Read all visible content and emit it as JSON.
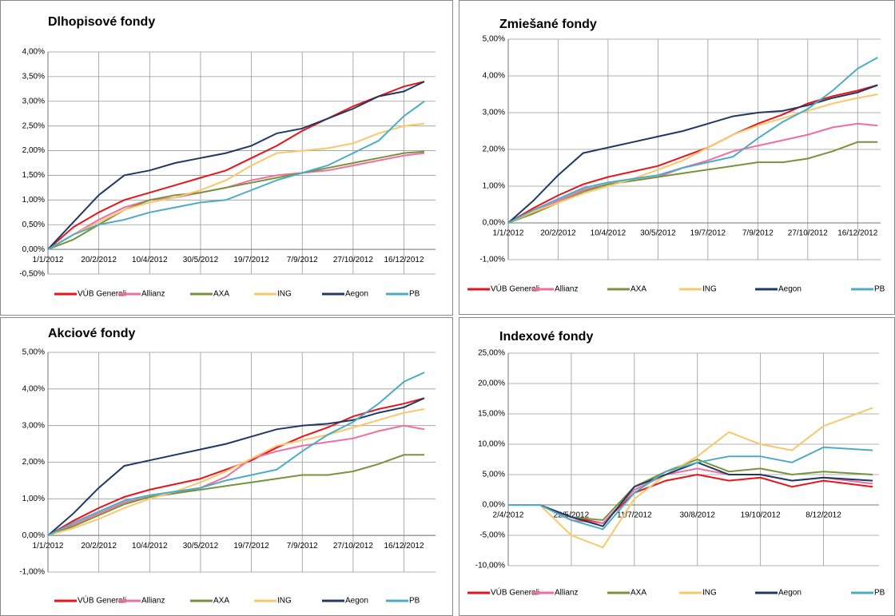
{
  "chart_data": [
    {
      "type": "line",
      "title": "Dlhopisové fondy",
      "x": [
        "2012-01-01",
        "2012-01-26",
        "2012-02-20",
        "2012-03-16",
        "2012-04-10",
        "2012-05-05",
        "2012-05-30",
        "2012-06-24",
        "2012-07-19",
        "2012-08-13",
        "2012-09-07",
        "2012-10-02",
        "2012-10-27",
        "2012-11-21",
        "2012-12-16",
        "2013-01-05"
      ],
      "xlim": [
        "2012-01-01",
        "2013-01-16"
      ],
      "xticks": [
        {
          "value": "2012-01-01",
          "label": "1/1/2012"
        },
        {
          "value": "2012-02-20",
          "label": "20/2/2012"
        },
        {
          "value": "2012-04-10",
          "label": "10/4/2012"
        },
        {
          "value": "2012-05-30",
          "label": "30/5/2012"
        },
        {
          "value": "2012-07-19",
          "label": "19/7/2012"
        },
        {
          "value": "2012-09-07",
          "label": "7/9/2012"
        },
        {
          "value": "2012-10-27",
          "label": "27/10/2012"
        },
        {
          "value": "2012-12-16",
          "label": "16/12/2012"
        }
      ],
      "ylim": [
        -0.5,
        4
      ],
      "yticks": [
        {
          "value": -0.5,
          "label": "-0,50%"
        },
        {
          "value": 0,
          "label": "0,00%"
        },
        {
          "value": 0.5,
          "label": "0,50%"
        },
        {
          "value": 1,
          "label": "1,00%"
        },
        {
          "value": 1.5,
          "label": "1,50%"
        },
        {
          "value": 2,
          "label": "2,00%"
        },
        {
          "value": 2.5,
          "label": "2,50%"
        },
        {
          "value": 3,
          "label": "3,00%"
        },
        {
          "value": 3.5,
          "label": "3,50%"
        },
        {
          "value": 4,
          "label": "4,00%"
        }
      ],
      "grid": true,
      "legend": "bottom",
      "series": [
        {
          "name": "VÚB Generali",
          "color": "#e8141b",
          "values": [
            0,
            0.45,
            0.75,
            1.0,
            1.15,
            1.3,
            1.45,
            1.6,
            1.85,
            2.1,
            2.4,
            2.65,
            2.9,
            3.1,
            3.3,
            3.4
          ]
        },
        {
          "name": "Allianz",
          "color": "#f06ea0",
          "values": [
            0,
            0.3,
            0.6,
            0.85,
            1.0,
            1.05,
            1.15,
            1.25,
            1.4,
            1.5,
            1.55,
            1.6,
            1.7,
            1.8,
            1.9,
            1.95
          ]
        },
        {
          "name": "AXA",
          "color": "#77943c",
          "values": [
            0,
            0.2,
            0.5,
            0.8,
            1.0,
            1.1,
            1.15,
            1.25,
            1.35,
            1.45,
            1.55,
            1.65,
            1.75,
            1.85,
            1.95,
            1.98
          ]
        },
        {
          "name": "ING",
          "color": "#fac76a",
          "values": [
            0,
            0.3,
            0.55,
            0.8,
            0.95,
            1.05,
            1.2,
            1.4,
            1.7,
            1.95,
            2.0,
            2.05,
            2.15,
            2.35,
            2.5,
            2.55
          ]
        },
        {
          "name": "Aegon",
          "color": "#1f3864",
          "values": [
            0,
            0.55,
            1.1,
            1.5,
            1.6,
            1.75,
            1.85,
            1.95,
            2.1,
            2.35,
            2.45,
            2.65,
            2.85,
            3.1,
            3.2,
            3.4
          ]
        },
        {
          "name": "PB",
          "color": "#4bacc6",
          "values": [
            0,
            0.3,
            0.5,
            0.6,
            0.75,
            0.85,
            0.95,
            1.0,
            1.2,
            1.4,
            1.55,
            1.7,
            1.95,
            2.2,
            2.7,
            3.0
          ]
        }
      ]
    },
    {
      "type": "line",
      "title": "Zmiešané fondy",
      "x": [
        "2012-01-01",
        "2012-01-26",
        "2012-02-20",
        "2012-03-16",
        "2012-04-10",
        "2012-05-05",
        "2012-05-30",
        "2012-06-24",
        "2012-07-19",
        "2012-08-13",
        "2012-09-07",
        "2012-10-02",
        "2012-10-27",
        "2012-11-21",
        "2012-12-16",
        "2013-01-05"
      ],
      "xlim": [
        "2012-01-01",
        "2013-01-08"
      ],
      "xticks": [
        {
          "value": "2012-01-01",
          "label": "1/1/2012"
        },
        {
          "value": "2012-02-20",
          "label": "20/2/2012"
        },
        {
          "value": "2012-04-10",
          "label": "10/4/2012"
        },
        {
          "value": "2012-05-30",
          "label": "30/5/2012"
        },
        {
          "value": "2012-07-19",
          "label": "19/7/2012"
        },
        {
          "value": "2012-09-07",
          "label": "7/9/2012"
        },
        {
          "value": "2012-10-27",
          "label": "27/10/2012"
        },
        {
          "value": "2012-12-16",
          "label": "16/12/2012"
        }
      ],
      "ylim": [
        -1,
        5
      ],
      "yticks": [
        {
          "value": -1,
          "label": "-1,00%"
        },
        {
          "value": 0,
          "label": "0,00%"
        },
        {
          "value": 1,
          "label": "1,00%"
        },
        {
          "value": 2,
          "label": "2,00%"
        },
        {
          "value": 3,
          "label": "3,00%"
        },
        {
          "value": 4,
          "label": "4,00%"
        },
        {
          "value": 5,
          "label": "5,00%"
        }
      ],
      "grid": true,
      "legend": "bottom",
      "series": [
        {
          "name": "VÚB Generali",
          "color": "#e8141b",
          "values": [
            0,
            0.4,
            0.75,
            1.05,
            1.25,
            1.4,
            1.55,
            1.8,
            2.05,
            2.4,
            2.7,
            2.95,
            3.25,
            3.45,
            3.6,
            3.75
          ]
        },
        {
          "name": "Allianz",
          "color": "#f06ea0",
          "values": [
            0,
            0.3,
            0.6,
            0.9,
            1.05,
            1.15,
            1.25,
            1.5,
            1.7,
            1.95,
            2.1,
            2.25,
            2.4,
            2.6,
            2.7,
            2.65
          ]
        },
        {
          "name": "AXA",
          "color": "#77943c",
          "values": [
            0,
            0.25,
            0.55,
            0.85,
            1.05,
            1.15,
            1.25,
            1.35,
            1.45,
            1.55,
            1.65,
            1.65,
            1.75,
            1.95,
            2.2,
            2.2
          ]
        },
        {
          "name": "ING",
          "color": "#fac76a",
          "values": [
            0,
            0.3,
            0.55,
            0.8,
            1.0,
            1.2,
            1.45,
            1.7,
            2.05,
            2.4,
            2.65,
            2.85,
            3.05,
            3.25,
            3.4,
            3.5
          ]
        },
        {
          "name": "Aegon",
          "color": "#1f3864",
          "values": [
            0,
            0.6,
            1.3,
            1.9,
            2.05,
            2.2,
            2.35,
            2.5,
            2.7,
            2.9,
            3.0,
            3.05,
            3.2,
            3.4,
            3.55,
            3.75
          ]
        },
        {
          "name": "PB",
          "color": "#4bacc6",
          "values": [
            0,
            0.35,
            0.65,
            0.95,
            1.1,
            1.2,
            1.3,
            1.5,
            1.65,
            1.8,
            2.3,
            2.75,
            3.1,
            3.6,
            4.2,
            4.5
          ]
        }
      ]
    },
    {
      "type": "line",
      "title": "Akciové fondy",
      "x": [
        "2012-01-01",
        "2012-01-26",
        "2012-02-20",
        "2012-03-16",
        "2012-04-10",
        "2012-05-05",
        "2012-05-30",
        "2012-06-24",
        "2012-07-19",
        "2012-08-13",
        "2012-09-07",
        "2012-10-02",
        "2012-10-27",
        "2012-11-21",
        "2012-12-16",
        "2013-01-05"
      ],
      "xlim": [
        "2012-01-01",
        "2013-01-16"
      ],
      "xticks": [
        {
          "value": "2012-01-01",
          "label": "1/1/2012"
        },
        {
          "value": "2012-02-20",
          "label": "20/2/2012"
        },
        {
          "value": "2012-04-10",
          "label": "10/4/2012"
        },
        {
          "value": "2012-05-30",
          "label": "30/5/2012"
        },
        {
          "value": "2012-07-19",
          "label": "19/7/2012"
        },
        {
          "value": "2012-09-07",
          "label": "7/9/2012"
        },
        {
          "value": "2012-10-27",
          "label": "27/10/2012"
        },
        {
          "value": "2012-12-16",
          "label": "16/12/2012"
        }
      ],
      "ylim": [
        -1,
        5
      ],
      "yticks": [
        {
          "value": -1,
          "label": "-1,00%"
        },
        {
          "value": 0,
          "label": "0,00%"
        },
        {
          "value": 1,
          "label": "1,00%"
        },
        {
          "value": 2,
          "label": "2,00%"
        },
        {
          "value": 3,
          "label": "3,00%"
        },
        {
          "value": 4,
          "label": "4,00%"
        },
        {
          "value": 5,
          "label": "5,00%"
        }
      ],
      "grid": true,
      "legend": "bottom",
      "series": [
        {
          "name": "VÚB Generali",
          "color": "#e8141b",
          "values": [
            0,
            0.4,
            0.75,
            1.05,
            1.25,
            1.4,
            1.55,
            1.8,
            2.05,
            2.4,
            2.7,
            2.95,
            3.25,
            3.45,
            3.6,
            3.75
          ]
        },
        {
          "name": "Allianz",
          "color": "#f06ea0",
          "values": [
            0,
            0.3,
            0.6,
            0.9,
            1.05,
            1.15,
            1.3,
            1.6,
            2.1,
            2.3,
            2.45,
            2.55,
            2.65,
            2.85,
            3.0,
            2.9
          ]
        },
        {
          "name": "AXA",
          "color": "#77943c",
          "values": [
            0,
            0.25,
            0.55,
            0.85,
            1.05,
            1.15,
            1.25,
            1.35,
            1.45,
            1.55,
            1.65,
            1.65,
            1.75,
            1.95,
            2.2,
            2.2
          ]
        },
        {
          "name": "ING",
          "color": "#fac76a",
          "values": [
            0,
            0.2,
            0.45,
            0.75,
            1.0,
            1.2,
            1.45,
            1.75,
            2.1,
            2.45,
            2.6,
            2.75,
            2.95,
            3.15,
            3.35,
            3.45
          ]
        },
        {
          "name": "Aegon",
          "color": "#1f3864",
          "values": [
            0,
            0.6,
            1.3,
            1.9,
            2.05,
            2.2,
            2.35,
            2.5,
            2.7,
            2.9,
            3.0,
            3.05,
            3.15,
            3.35,
            3.5,
            3.75
          ]
        },
        {
          "name": "PB",
          "color": "#4bacc6",
          "values": [
            0,
            0.35,
            0.65,
            0.95,
            1.1,
            1.2,
            1.3,
            1.5,
            1.65,
            1.8,
            2.3,
            2.75,
            3.1,
            3.6,
            4.2,
            4.45
          ]
        }
      ]
    },
    {
      "type": "line",
      "title": "Indexové fondy",
      "x": [
        "2012-04-02",
        "2012-04-27",
        "2012-05-22",
        "2012-06-16",
        "2012-07-11",
        "2012-08-05",
        "2012-08-30",
        "2012-09-24",
        "2012-10-19",
        "2012-11-13",
        "2012-12-08",
        "2013-01-16"
      ],
      "xlim": [
        "2012-04-02",
        "2013-01-21"
      ],
      "xticks": [
        {
          "value": "2012-04-02",
          "label": "2/4/2012"
        },
        {
          "value": "2012-05-22",
          "label": "22/5/2012"
        },
        {
          "value": "2012-07-11",
          "label": "11/7/2012"
        },
        {
          "value": "2012-08-30",
          "label": "30/8/2012"
        },
        {
          "value": "2012-10-19",
          "label": "19/10/2012"
        },
        {
          "value": "2012-12-08",
          "label": "8/12/2012"
        }
      ],
      "ylim": [
        -10,
        25
      ],
      "yticks": [
        {
          "value": -10,
          "label": "-10,00%"
        },
        {
          "value": -5,
          "label": "-5,00%"
        },
        {
          "value": 0,
          "label": "0,00%"
        },
        {
          "value": 5,
          "label": "5,00%"
        },
        {
          "value": 10,
          "label": "10,00%"
        },
        {
          "value": 15,
          "label": "15,00%"
        },
        {
          "value": 20,
          "label": "20,00%"
        },
        {
          "value": 25,
          "label": "25,00%"
        }
      ],
      "grid": true,
      "legend": "bottom",
      "series": [
        {
          "name": "VÚB Generali",
          "color": "#e8141b",
          "values": [
            0,
            0,
            -2,
            -3,
            2,
            4,
            5,
            4,
            4.5,
            3,
            4,
            3
          ]
        },
        {
          "name": "Allianz",
          "color": "#f06ea0",
          "values": [
            0,
            0,
            -2.5,
            -3,
            2.5,
            5,
            6,
            5,
            5,
            4,
            4.5,
            3.5
          ]
        },
        {
          "name": "AXA",
          "color": "#77943c",
          "values": [
            0,
            0,
            -2,
            -2.5,
            3,
            5.5,
            7.5,
            5.5,
            6,
            5,
            5.5,
            5
          ]
        },
        {
          "name": "ING",
          "color": "#fac76a",
          "values": [
            0,
            0,
            -5,
            -7,
            1,
            5,
            8,
            12,
            10,
            9,
            13,
            16
          ]
        },
        {
          "name": "Aegon",
          "color": "#1f3864",
          "values": [
            0,
            0,
            -2,
            -3.5,
            3,
            5,
            7,
            5,
            5,
            4,
            4.5,
            4
          ]
        },
        {
          "name": "PB",
          "color": "#4bacc6",
          "values": [
            0,
            0,
            -2.5,
            -4,
            2,
            5.5,
            7,
            8,
            8,
            7,
            9.5,
            9
          ]
        }
      ]
    }
  ]
}
